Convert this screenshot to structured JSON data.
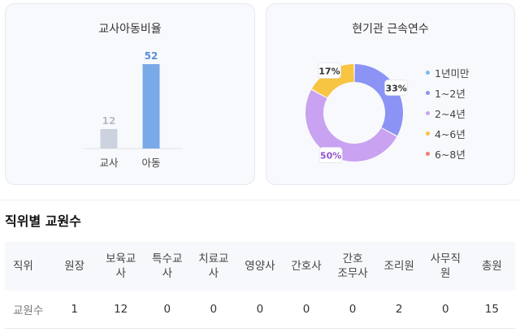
{
  "charts": {
    "ratio": {
      "title": "교사아동비율",
      "chart_data": {
        "type": "bar",
        "title": "교사아동비율",
        "categories": [
          "교사",
          "아동"
        ],
        "values": [
          12,
          52
        ],
        "colors": [
          "#ccd2de",
          "#7aa9e8"
        ],
        "label_colors": [
          "#b4bccb",
          "#5b8fd6"
        ]
      }
    },
    "tenure": {
      "title": "현기관 근속연수",
      "chart_data": {
        "type": "pie",
        "title": "현기관 근속연수",
        "categories": [
          "1년미만",
          "1~2년",
          "2~4년",
          "4~6년",
          "6~8년"
        ],
        "values": [
          0,
          33,
          50,
          17,
          0
        ],
        "colors": [
          "#7fb6ee",
          "#8b93f5",
          "#c9a2f2",
          "#f8c542",
          "#f27d72"
        ],
        "data_labels": [
          "",
          "33%",
          "50%",
          "17%",
          ""
        ],
        "label_text_colors": [
          "#333333",
          "#333333",
          "#8e56c9",
          "#333333",
          "#333333"
        ],
        "legend_position": "right"
      }
    }
  },
  "staff": {
    "title": "직위별 교원수",
    "columns": [
      "직위",
      "원장",
      "보육교\n사",
      "특수교\n사",
      "치료교\n사",
      "영양사",
      "간호사",
      "간호\n조무사",
      "조리원",
      "사무직\n원",
      "총원"
    ],
    "row": [
      "교원수",
      "1",
      "12",
      "0",
      "0",
      "0",
      "0",
      "0",
      "2",
      "0",
      "15"
    ]
  }
}
